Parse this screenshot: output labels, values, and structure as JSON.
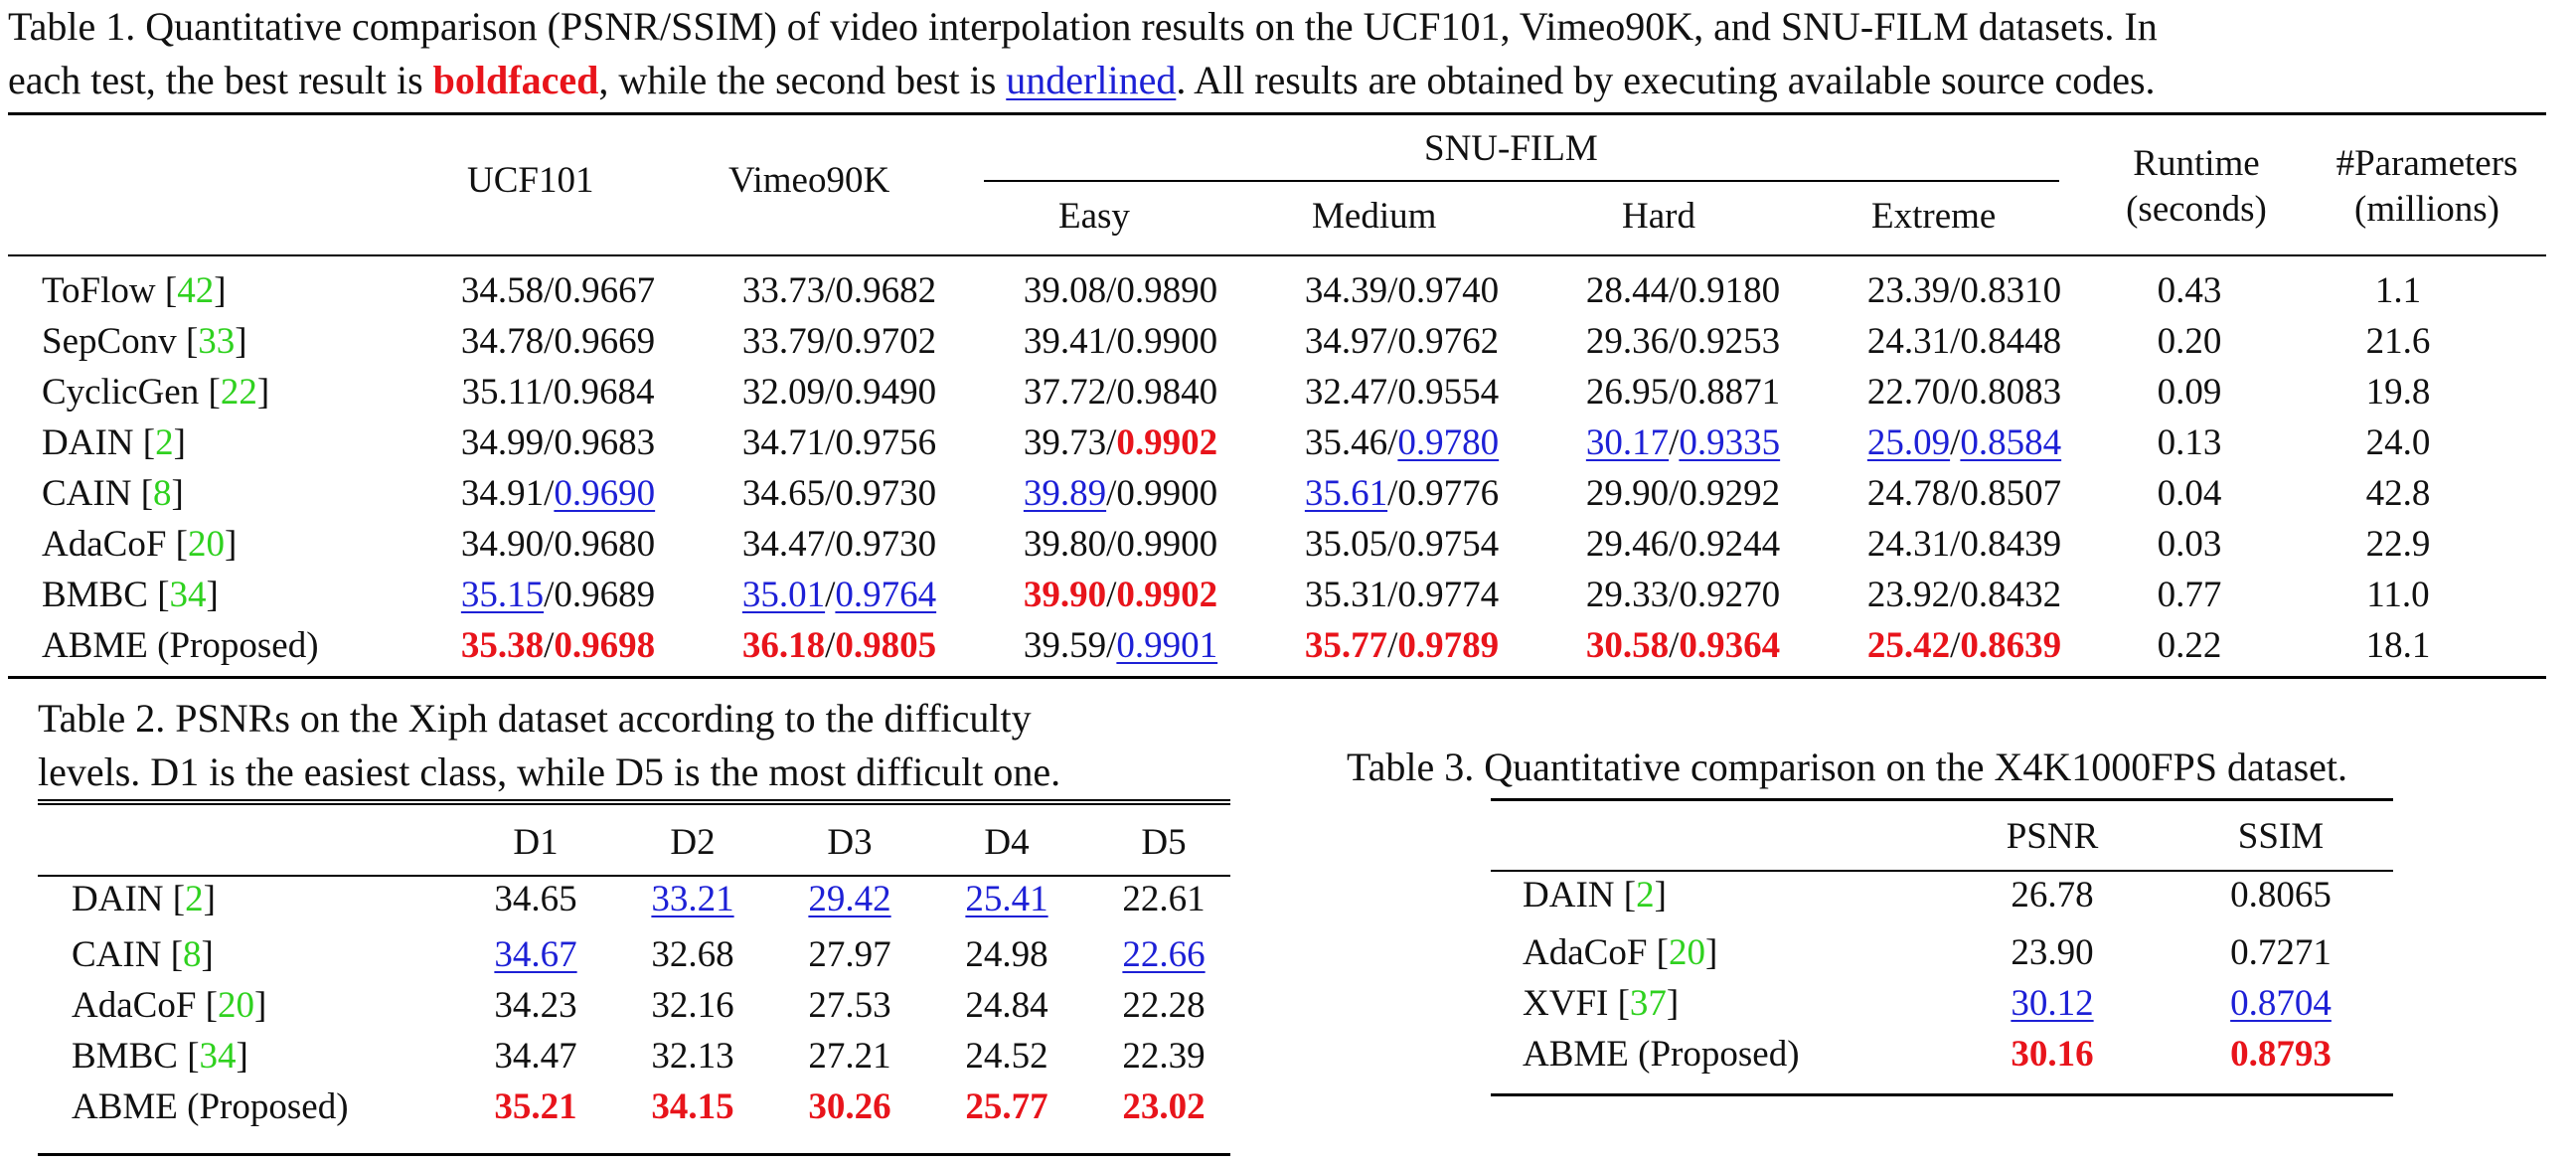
{
  "table1": {
    "caption_line1": "Table 1.  Quantitative comparison (PSNR/SSIM) of video interpolation results on the UCF101, Vimeo90K, and SNU-FILM datasets. In",
    "caption_line2_pre": "each test, the best result is ",
    "caption_bold": "boldfaced",
    "caption_mid": ", while the second best is ",
    "caption_underline": "underlined",
    "caption_end": ".  All results are obtained by executing available source codes.",
    "headers": {
      "ucf": "UCF101",
      "vimeo": "Vimeo90K",
      "snu": "SNU-FILM",
      "easy": "Easy",
      "medium": "Medium",
      "hard": "Hard",
      "extreme": "Extreme",
      "runtime1": "Runtime",
      "runtime2": "(seconds)",
      "params1": "#Parameters",
      "params2": "(millions)"
    },
    "rows": [
      {
        "method": "ToFlow",
        "ref": "42",
        "cells": [
          [
            "34.58",
            "",
            "0.9667",
            ""
          ],
          [
            "33.73",
            "",
            "0.9682",
            ""
          ],
          [
            "39.08",
            "",
            "0.9890",
            ""
          ],
          [
            "34.39",
            "",
            "0.9740",
            ""
          ],
          [
            "28.44",
            "",
            "0.9180",
            ""
          ],
          [
            "23.39",
            "",
            "0.8310",
            ""
          ]
        ],
        "runtime": "0.43",
        "params": "1.1"
      },
      {
        "method": "SepConv",
        "ref": "33",
        "cells": [
          [
            "34.78",
            "",
            "0.9669",
            ""
          ],
          [
            "33.79",
            "",
            "0.9702",
            ""
          ],
          [
            "39.41",
            "",
            "0.9900",
            ""
          ],
          [
            "34.97",
            "",
            "0.9762",
            ""
          ],
          [
            "29.36",
            "",
            "0.9253",
            ""
          ],
          [
            "24.31",
            "",
            "0.8448",
            ""
          ]
        ],
        "runtime": "0.20",
        "params": "21.6"
      },
      {
        "method": "CyclicGen",
        "ref": "22",
        "cells": [
          [
            "35.11",
            "",
            "0.9684",
            ""
          ],
          [
            "32.09",
            "",
            "0.9490",
            ""
          ],
          [
            "37.72",
            "",
            "0.9840",
            ""
          ],
          [
            "32.47",
            "",
            "0.9554",
            ""
          ],
          [
            "26.95",
            "",
            "0.8871",
            ""
          ],
          [
            "22.70",
            "",
            "0.8083",
            ""
          ]
        ],
        "runtime": "0.09",
        "params": "19.8"
      },
      {
        "method": "DAIN",
        "ref": "2",
        "cells": [
          [
            "34.99",
            "",
            "0.9683",
            ""
          ],
          [
            "34.71",
            "",
            "0.9756",
            ""
          ],
          [
            "39.73",
            "",
            "0.9902",
            "best"
          ],
          [
            "35.46",
            "",
            "0.9780",
            "second"
          ],
          [
            "30.17",
            "second",
            "0.9335",
            "second"
          ],
          [
            "25.09",
            "second",
            "0.8584",
            "second"
          ]
        ],
        "runtime": "0.13",
        "params": "24.0"
      },
      {
        "method": "CAIN",
        "ref": "8",
        "cells": [
          [
            "34.91",
            "",
            "0.9690",
            "second"
          ],
          [
            "34.65",
            "",
            "0.9730",
            ""
          ],
          [
            "39.89",
            "second",
            "0.9900",
            ""
          ],
          [
            "35.61",
            "second",
            "0.9776",
            ""
          ],
          [
            "29.90",
            "",
            "0.9292",
            ""
          ],
          [
            "24.78",
            "",
            "0.8507",
            ""
          ]
        ],
        "runtime": "0.04",
        "params": "42.8"
      },
      {
        "method": "AdaCoF",
        "ref": "20",
        "cells": [
          [
            "34.90",
            "",
            "0.9680",
            ""
          ],
          [
            "34.47",
            "",
            "0.9730",
            ""
          ],
          [
            "39.80",
            "",
            "0.9900",
            ""
          ],
          [
            "35.05",
            "",
            "0.9754",
            ""
          ],
          [
            "29.46",
            "",
            "0.9244",
            ""
          ],
          [
            "24.31",
            "",
            "0.8439",
            ""
          ]
        ],
        "runtime": "0.03",
        "params": "22.9"
      },
      {
        "method": "BMBC",
        "ref": "34",
        "cells": [
          [
            "35.15",
            "second",
            "0.9689",
            ""
          ],
          [
            "35.01",
            "second",
            "0.9764",
            "second"
          ],
          [
            "39.90",
            "best",
            "0.9902",
            "best"
          ],
          [
            "35.31",
            "",
            "0.9774",
            ""
          ],
          [
            "29.33",
            "",
            "0.9270",
            ""
          ],
          [
            "23.92",
            "",
            "0.8432",
            ""
          ]
        ],
        "runtime": "0.77",
        "params": "11.0"
      },
      {
        "method": "ABME (Proposed)",
        "ref": "",
        "cells": [
          [
            "35.38",
            "best",
            "0.9698",
            "best"
          ],
          [
            "36.18",
            "best",
            "0.9805",
            "best"
          ],
          [
            "39.59",
            "",
            "0.9901",
            "second"
          ],
          [
            "35.77",
            "best",
            "0.9789",
            "best"
          ],
          [
            "30.58",
            "best",
            "0.9364",
            "best"
          ],
          [
            "25.42",
            "best",
            "0.8639",
            "best"
          ]
        ],
        "runtime": "0.22",
        "params": "18.1"
      }
    ]
  },
  "table2": {
    "caption_line1": "Table 2.   PSNRs on the Xiph dataset according to the difficulty",
    "caption_line2": "levels. D1 is the easiest class, while D5 is the most difficult one.",
    "headers": [
      "D1",
      "D2",
      "D3",
      "D4",
      "D5"
    ],
    "rows": [
      {
        "method": "DAIN",
        "ref": "2",
        "cells": [
          [
            "34.65",
            ""
          ],
          [
            "33.21",
            "second"
          ],
          [
            "29.42",
            "second"
          ],
          [
            "25.41",
            "second"
          ],
          [
            "22.61",
            ""
          ]
        ]
      },
      {
        "method": "CAIN",
        "ref": "8",
        "cells": [
          [
            "34.67",
            "second"
          ],
          [
            "32.68",
            ""
          ],
          [
            "27.97",
            ""
          ],
          [
            "24.98",
            ""
          ],
          [
            "22.66",
            "second"
          ]
        ]
      },
      {
        "method": "AdaCoF",
        "ref": "20",
        "cells": [
          [
            "34.23",
            ""
          ],
          [
            "32.16",
            ""
          ],
          [
            "27.53",
            ""
          ],
          [
            "24.84",
            ""
          ],
          [
            "22.28",
            ""
          ]
        ]
      },
      {
        "method": "BMBC",
        "ref": "34",
        "cells": [
          [
            "34.47",
            ""
          ],
          [
            "32.13",
            ""
          ],
          [
            "27.21",
            ""
          ],
          [
            "24.52",
            ""
          ],
          [
            "22.39",
            ""
          ]
        ]
      },
      {
        "method": "ABME (Proposed)",
        "ref": "",
        "cells": [
          [
            "35.21",
            "best"
          ],
          [
            "34.15",
            "best"
          ],
          [
            "30.26",
            "best"
          ],
          [
            "25.77",
            "best"
          ],
          [
            "23.02",
            "best"
          ]
        ]
      }
    ]
  },
  "table3": {
    "caption": "Table 3.  Quantitative comparison on the X4K1000FPS dataset.",
    "headers": [
      "PSNR",
      "SSIM"
    ],
    "rows": [
      {
        "method": "DAIN",
        "ref": "2",
        "cells": [
          [
            "26.78",
            ""
          ],
          [
            "0.8065",
            ""
          ]
        ]
      },
      {
        "method": "AdaCoF",
        "ref": "20",
        "cells": [
          [
            "23.90",
            ""
          ],
          [
            "0.7271",
            ""
          ]
        ]
      },
      {
        "method": "XVFI",
        "ref": "37",
        "cells": [
          [
            "30.12",
            "second"
          ],
          [
            "0.8704",
            "second"
          ]
        ]
      },
      {
        "method": "ABME (Proposed)",
        "ref": "",
        "cells": [
          [
            "30.16",
            "best"
          ],
          [
            "0.8793",
            "best"
          ]
        ]
      }
    ]
  }
}
